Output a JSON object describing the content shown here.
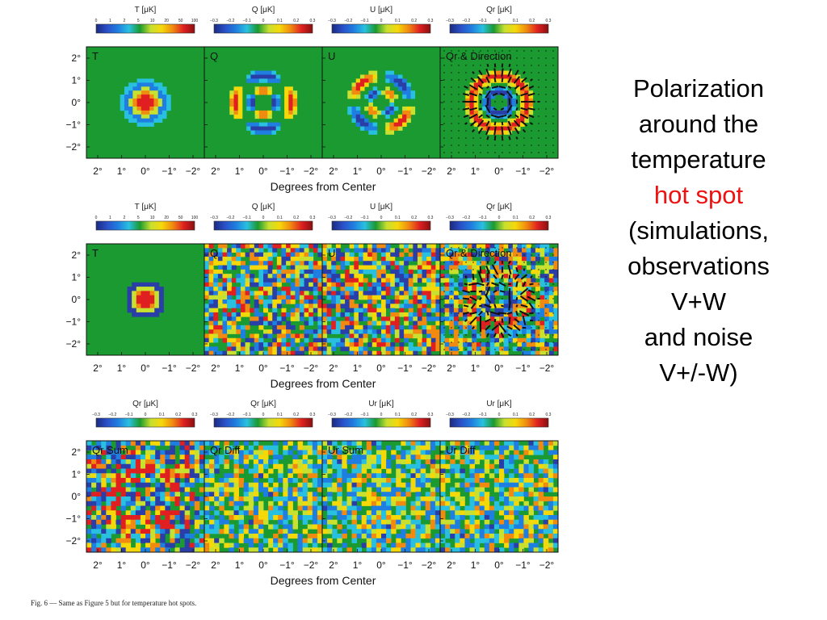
{
  "figure": {
    "colorbars": [
      [
        {
          "title": "T [μK]",
          "ticks": [
            "0",
            "1",
            "2",
            "5",
            "10",
            "20",
            "50",
            "100"
          ]
        },
        {
          "title": "Q [μK]",
          "ticks": [
            "−0.3",
            "−0.2",
            "−0.1",
            "0",
            "0.1",
            "0.2",
            "0.3"
          ]
        },
        {
          "title": "U [μK]",
          "ticks": [
            "−0.3",
            "−0.2",
            "−0.1",
            "0",
            "0.1",
            "0.2",
            "0.3"
          ]
        },
        {
          "title": "Qr [μK]",
          "ticks": [
            "−0.3",
            "−0.2",
            "−0.1",
            "0",
            "0.1",
            "0.2",
            "0.3"
          ]
        }
      ],
      [
        {
          "title": "T [μK]",
          "ticks": [
            "0",
            "1",
            "2",
            "5",
            "10",
            "20",
            "50",
            "100"
          ]
        },
        {
          "title": "Q [μK]",
          "ticks": [
            "−0.3",
            "−0.2",
            "−0.1",
            "0",
            "0.1",
            "0.2",
            "0.3"
          ]
        },
        {
          "title": "U [μK]",
          "ticks": [
            "−0.3",
            "−0.2",
            "−0.1",
            "0",
            "0.1",
            "0.2",
            "0.3"
          ]
        },
        {
          "title": "Qr [μK]",
          "ticks": [
            "−0.3",
            "−0.2",
            "−0.1",
            "0",
            "0.1",
            "0.2",
            "0.3"
          ]
        }
      ],
      [
        {
          "title": "Qr [μK]",
          "ticks": [
            "−0.3",
            "−0.2",
            "−0.1",
            "0",
            "0.1",
            "0.2",
            "0.3"
          ]
        },
        {
          "title": "Qr [μK]",
          "ticks": [
            "−0.3",
            "−0.2",
            "−0.1",
            "0",
            "0.1",
            "0.2",
            "0.3"
          ]
        },
        {
          "title": "Ur [μK]",
          "ticks": [
            "−0.3",
            "−0.2",
            "−0.1",
            "0",
            "0.1",
            "0.2",
            "0.3"
          ]
        },
        {
          "title": "Ur [μK]",
          "ticks": [
            "−0.3",
            "−0.2",
            "−0.1",
            "0",
            "0.1",
            "0.2",
            "0.3"
          ]
        }
      ]
    ],
    "panel_labels": [
      [
        "T",
        "Q",
        "U",
        "Qr & Direction"
      ],
      [
        "T",
        "Q",
        "U",
        "Qr & Direction"
      ],
      [
        "Qr Sum",
        "Qr Diff",
        "Ur Sum",
        "Ur Diff"
      ]
    ],
    "y_ticks": [
      "2°",
      "1°",
      "0°",
      "−1°",
      "−2°"
    ],
    "x_ticks": [
      "2°",
      "1°",
      "0°",
      "−1°",
      "−2°"
    ],
    "x_label": "Degrees from Center",
    "caption": "Fig. 6 — Same as Figure 5 but for temperature hot spots."
  },
  "side_text": {
    "line1": "Polarization",
    "line2": "around the",
    "line3": "temperature",
    "line4": "hot spot",
    "line5": "(simulations,",
    "line6": "observations",
    "line7": "V+W",
    "line8": "and noise",
    "line9": "V+/-W)"
  },
  "colors": {
    "background_map": "#1a9a30",
    "highlight_text": "#ee1111",
    "palette": [
      "#2a3ea8",
      "#1f7fe0",
      "#29c0e0",
      "#1a9a30",
      "#c8e030",
      "#f5d80a",
      "#f08a10",
      "#e02020"
    ]
  }
}
